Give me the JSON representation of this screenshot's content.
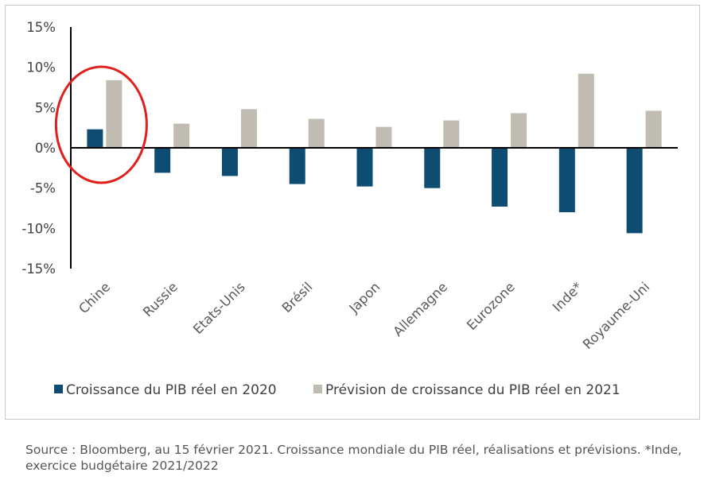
{
  "chart_data": {
    "type": "bar",
    "categories": [
      "Chine",
      "Russie",
      "Etats-Unis",
      "Brésil",
      "Japon",
      "Allemagne",
      "Eurozone",
      "Inde*",
      "Royaume-Uni"
    ],
    "series": [
      {
        "name": "Croissance du PIB réel en 2020",
        "color": "#0f4c72",
        "values": [
          2.3,
          -3.1,
          -3.5,
          -4.5,
          -4.8,
          -5.0,
          -7.3,
          -8.0,
          -10.6
        ]
      },
      {
        "name": "Prévision de croissance du PIB réel en 2021",
        "color": "#c0bcb2",
        "values": [
          8.4,
          3.0,
          4.8,
          3.6,
          2.6,
          3.4,
          4.3,
          9.2,
          4.6
        ]
      }
    ],
    "ylim": [
      -15,
      15
    ],
    "yticks": [
      15,
      10,
      5,
      0,
      -5,
      -10,
      -15
    ],
    "ytick_labels": [
      "15%",
      "10%",
      "5%",
      "0%",
      "-5%",
      "-10%",
      "-15%"
    ],
    "legend_position": "bottom",
    "grid": false,
    "annotations": [
      {
        "type": "ellipse",
        "color": "#e0201c",
        "target_category": "Chine"
      }
    ]
  },
  "source_note": "Source : Bloomberg, au 15 février 2021. Croissance mondiale du PIB réel, réalisations et prévisions. *Inde, exercice budgétaire 2021/2022"
}
